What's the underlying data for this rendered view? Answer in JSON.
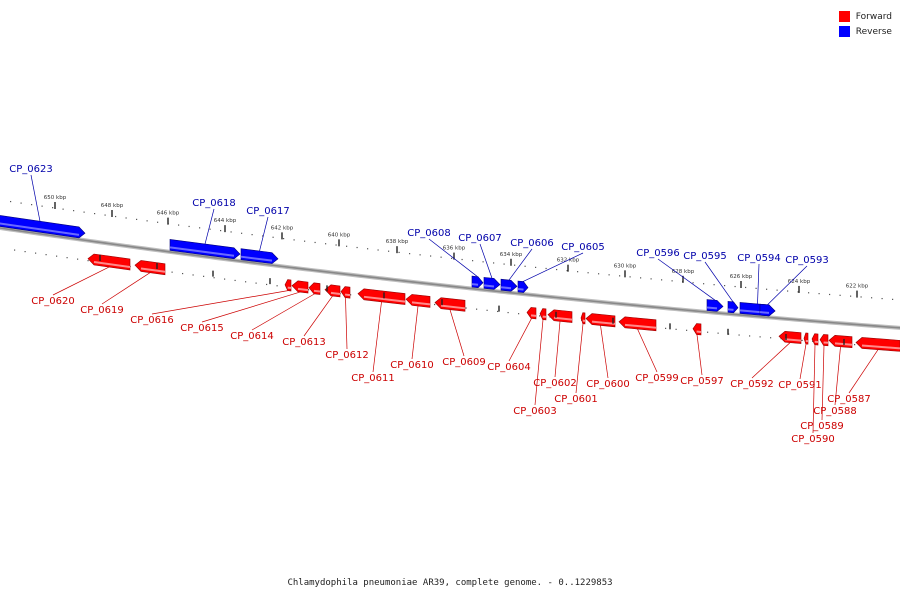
{
  "legend": {
    "forward": {
      "label": "Forward",
      "color": "#ff0000"
    },
    "reverse": {
      "label": "Reverse",
      "color": "#0000ff"
    }
  },
  "caption": "Chlamydophila pneumoniae AR39, complete genome. - 0..1229853",
  "colors": {
    "forward_label": "#cc0000",
    "reverse_label": "#0000aa",
    "backbone": "#888888"
  },
  "ticks": [
    "650 kbp",
    "648 kbp",
    "646 kbp",
    "644 kbp",
    "642 kbp",
    "640 kbp",
    "638 kbp",
    "636 kbp",
    "634 kbp",
    "632 kbp",
    "630 kbp",
    "628 kbp",
    "626 kbp",
    "624 kbp",
    "622 kbp"
  ],
  "reverse_genes": [
    "CP_0623",
    "CP_0618",
    "CP_0617",
    "CP_0608",
    "CP_0607",
    "CP_0606",
    "CP_0605",
    "CP_0596",
    "CP_0595",
    "CP_0594",
    "CP_0593"
  ],
  "forward_genes": [
    "CP_0620",
    "CP_0619",
    "CP_0616",
    "CP_0615",
    "CP_0614",
    "CP_0613",
    "CP_0612",
    "CP_0611",
    "CP_0610",
    "CP_0609",
    "CP_0604",
    "CP_0603",
    "CP_0602",
    "CP_0601",
    "CP_0600",
    "CP_0599",
    "CP_0597",
    "CP_0592",
    "CP_0591",
    "CP_0590",
    "CP_0589",
    "CP_0588",
    "CP_0587"
  ]
}
